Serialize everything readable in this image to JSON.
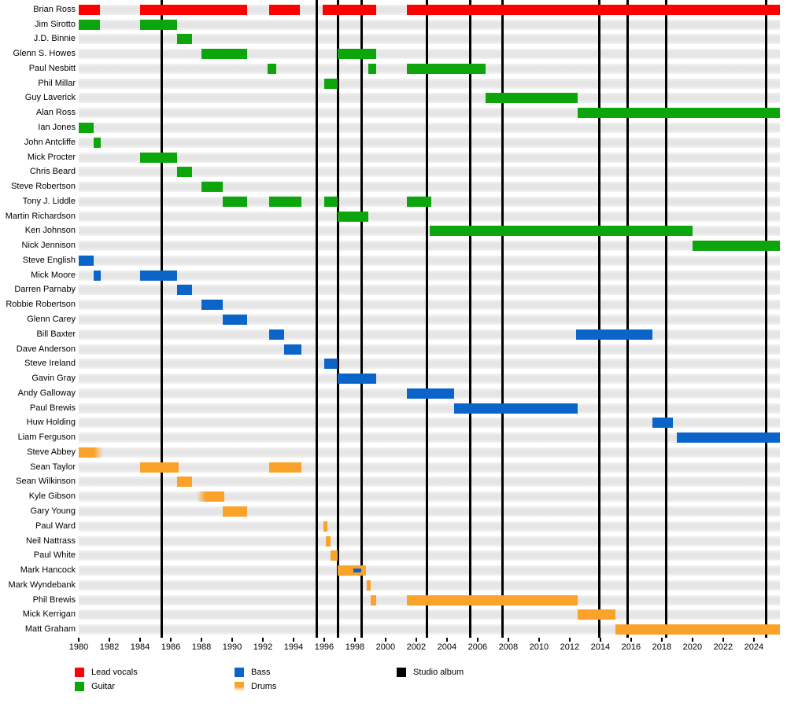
{
  "chart_data": {
    "type": "timeline",
    "description": "Band members timeline (gantt-style), instrument tenure bars with studio album markers",
    "x_axis": {
      "start": 1980,
      "end": 2025.7,
      "tick_interval": 2,
      "tick_labels": [
        "1980",
        "1982",
        "1984",
        "1986",
        "1988",
        "1990",
        "1992",
        "1994",
        "1996",
        "1998",
        "2000",
        "2002",
        "2004",
        "2006",
        "2008",
        "2010",
        "2012",
        "2014",
        "2016",
        "2018",
        "2020",
        "2022",
        "2024"
      ]
    },
    "album_lines": [
      1985.4,
      1995.5,
      1996.92,
      1998.42,
      2002.68,
      2005.53,
      2007.63,
      2013.92,
      2015.8,
      2018.3,
      2024.78
    ],
    "colors": {
      "lead_vocals": "#fe0000",
      "guitar": "#0ca60c",
      "bass": "#0b64c8",
      "drums": "#faa22a",
      "album": "#000000"
    },
    "legend": [
      {
        "label": "Lead vocals",
        "instrument": "lead_vocals",
        "col": 0,
        "row": 0,
        "fade_swatch": false
      },
      {
        "label": "Guitar",
        "instrument": "guitar",
        "col": 0,
        "row": 1,
        "fade_swatch": false
      },
      {
        "label": "Bass",
        "instrument": "bass",
        "col": 1,
        "row": 0,
        "fade_swatch": false
      },
      {
        "label": "Drums",
        "instrument": "drums",
        "col": 1,
        "row": 1,
        "fade_swatch": true
      },
      {
        "label": "Studio album",
        "instrument": "album",
        "col": 2,
        "row": 0,
        "fade_swatch": false
      }
    ],
    "members": [
      {
        "name": "Brian Ross",
        "instrument": "lead_vocals",
        "bars": [
          {
            "from": 1980,
            "to": 1981.4
          },
          {
            "from": 1984,
            "to": 1991
          },
          {
            "from": 1992.4,
            "to": 1994.4
          },
          {
            "from": 1995.9,
            "to": 1999.4
          },
          {
            "from": 2001.4,
            "to": 2025.7
          }
        ]
      },
      {
        "name": "Jim Sirotto",
        "instrument": "guitar",
        "bars": [
          {
            "from": 1980,
            "to": 1981.4
          },
          {
            "from": 1984,
            "to": 1986.4
          }
        ]
      },
      {
        "name": "J.D. Binnie",
        "instrument": "guitar",
        "bars": [
          {
            "from": 1986.4,
            "to": 1987.4
          }
        ]
      },
      {
        "name": "Glenn S. Howes",
        "instrument": "guitar",
        "bars": [
          {
            "from": 1988,
            "to": 1991
          },
          {
            "from": 1996.9,
            "to": 1999.4
          }
        ]
      },
      {
        "name": "Paul Nesbitt",
        "instrument": "guitar",
        "bars": [
          {
            "from": 1992.3,
            "to": 1992.9
          },
          {
            "from": 1998.9,
            "to": 1999.4
          },
          {
            "from": 2001.4,
            "to": 2006.5
          }
        ]
      },
      {
        "name": "Phil Millar",
        "instrument": "guitar",
        "bars": [
          {
            "from": 1996,
            "to": 1996.9
          }
        ]
      },
      {
        "name": "Guy Laverick",
        "instrument": "guitar",
        "bars": [
          {
            "from": 2006.5,
            "to": 2012.5
          }
        ]
      },
      {
        "name": "Alan Ross",
        "instrument": "guitar",
        "bars": [
          {
            "from": 2012.5,
            "to": 2025.7
          }
        ]
      },
      {
        "name": "Ian Jones",
        "instrument": "guitar",
        "bars": [
          {
            "from": 1980,
            "to": 1981
          }
        ]
      },
      {
        "name": "John Antcliffe",
        "instrument": "guitar",
        "bars": [
          {
            "from": 1981,
            "to": 1981.45
          }
        ]
      },
      {
        "name": "Mick Procter",
        "instrument": "guitar",
        "bars": [
          {
            "from": 1984,
            "to": 1986.4
          }
        ]
      },
      {
        "name": "Chris Beard",
        "instrument": "guitar",
        "bars": [
          {
            "from": 1986.4,
            "to": 1987.4
          }
        ]
      },
      {
        "name": "Steve Robertson",
        "instrument": "guitar",
        "bars": [
          {
            "from": 1988,
            "to": 1989.4
          }
        ]
      },
      {
        "name": "Tony J. Liddle",
        "instrument": "guitar",
        "bars": [
          {
            "from": 1989.4,
            "to": 1991
          },
          {
            "from": 1992.4,
            "to": 1994.5
          },
          {
            "from": 1996,
            "to": 1996.9
          },
          {
            "from": 2001.4,
            "to": 2003
          }
        ]
      },
      {
        "name": "Martin Richardson",
        "instrument": "guitar",
        "bars": [
          {
            "from": 1996.9,
            "to": 1998.9
          }
        ]
      },
      {
        "name": "Ken Johnson",
        "instrument": "guitar",
        "bars": [
          {
            "from": 2002.9,
            "to": 2020
          }
        ]
      },
      {
        "name": "Nick Jennison",
        "instrument": "guitar",
        "bars": [
          {
            "from": 2020,
            "to": 2025.7
          }
        ]
      },
      {
        "name": "Steve English",
        "instrument": "bass",
        "bars": [
          {
            "from": 1980,
            "to": 1981
          }
        ]
      },
      {
        "name": "Mick Moore",
        "instrument": "bass",
        "bars": [
          {
            "from": 1981,
            "to": 1981.45
          },
          {
            "from": 1984,
            "to": 1986.4
          }
        ]
      },
      {
        "name": "Darren Parnaby",
        "instrument": "bass",
        "bars": [
          {
            "from": 1986.4,
            "to": 1987.4
          }
        ]
      },
      {
        "name": "Robbie Robertson",
        "instrument": "bass",
        "bars": [
          {
            "from": 1988,
            "to": 1989.4
          }
        ]
      },
      {
        "name": "Glenn Carey",
        "instrument": "bass",
        "bars": [
          {
            "from": 1989.4,
            "to": 1991
          }
        ]
      },
      {
        "name": "Bill Baxter",
        "instrument": "bass",
        "bars": [
          {
            "from": 1992.4,
            "to": 1993.4
          },
          {
            "from": 2012.4,
            "to": 2017.4
          }
        ]
      },
      {
        "name": "Dave Anderson",
        "instrument": "bass",
        "bars": [
          {
            "from": 1993.4,
            "to": 1994.5
          }
        ]
      },
      {
        "name": "Steve Ireland",
        "instrument": "bass",
        "bars": [
          {
            "from": 1996,
            "to": 1996.9
          }
        ]
      },
      {
        "name": "Gavin Gray",
        "instrument": "bass",
        "bars": [
          {
            "from": 1996.9,
            "to": 1999.4
          }
        ]
      },
      {
        "name": "Andy Galloway",
        "instrument": "bass",
        "bars": [
          {
            "from": 2001.4,
            "to": 2004.45
          }
        ]
      },
      {
        "name": "Paul Brewis",
        "instrument": "bass",
        "bars": [
          {
            "from": 2004.45,
            "to": 2012.5
          }
        ]
      },
      {
        "name": "Huw Holding",
        "instrument": "bass",
        "bars": [
          {
            "from": 2017.4,
            "to": 2018.75
          }
        ]
      },
      {
        "name": "Liam Ferguson",
        "instrument": "bass",
        "bars": [
          {
            "from": 2019,
            "to": 2025.7
          }
        ]
      },
      {
        "name": "Steve Abbey",
        "instrument": "drums",
        "bars": [
          {
            "from": 1980,
            "to": 1981.6,
            "fade": "right"
          }
        ]
      },
      {
        "name": "Sean Taylor",
        "instrument": "drums",
        "bars": [
          {
            "from": 1984,
            "to": 1986.5
          },
          {
            "from": 1992.4,
            "to": 1994.5
          }
        ]
      },
      {
        "name": "Sean Wilkinson",
        "instrument": "drums",
        "bars": [
          {
            "from": 1986.4,
            "to": 1987.4
          }
        ]
      },
      {
        "name": "Kyle Gibson",
        "instrument": "drums",
        "bars": [
          {
            "from": 1987.7,
            "to": 1989.5,
            "fade": "left"
          }
        ]
      },
      {
        "name": "Gary Young",
        "instrument": "drums",
        "bars": [
          {
            "from": 1989.4,
            "to": 1991
          }
        ]
      },
      {
        "name": "Paul Ward",
        "instrument": "drums",
        "bars": [
          {
            "from": 1995.95,
            "to": 1996.2
          }
        ]
      },
      {
        "name": "Neil Nattrass",
        "instrument": "drums",
        "bars": [
          {
            "from": 1996.1,
            "to": 1996.4
          }
        ]
      },
      {
        "name": "Paul White",
        "instrument": "drums",
        "bars": [
          {
            "from": 1996.4,
            "to": 1996.9
          }
        ]
      },
      {
        "name": "Mark Hancock",
        "instrument": "drums",
        "bars": [
          {
            "from": 1996.9,
            "to": 1998.7
          }
        ],
        "overlays": [
          {
            "from": 1997.9,
            "to": 1998.4,
            "instrument": "bass"
          }
        ]
      },
      {
        "name": "Mark Wyndebank",
        "instrument": "drums",
        "bars": [
          {
            "from": 1998.75,
            "to": 1999.05
          }
        ]
      },
      {
        "name": "Phil Brewis",
        "instrument": "drums",
        "bars": [
          {
            "from": 1999.05,
            "to": 1999.4
          },
          {
            "from": 2001.4,
            "to": 2012.5
          }
        ]
      },
      {
        "name": "Mick Kerrigan",
        "instrument": "drums",
        "bars": [
          {
            "from": 2012.5,
            "to": 2015
          }
        ]
      },
      {
        "name": "Matt Graham",
        "instrument": "drums",
        "bars": [
          {
            "from": 2015,
            "to": 2025.7
          }
        ]
      }
    ]
  }
}
